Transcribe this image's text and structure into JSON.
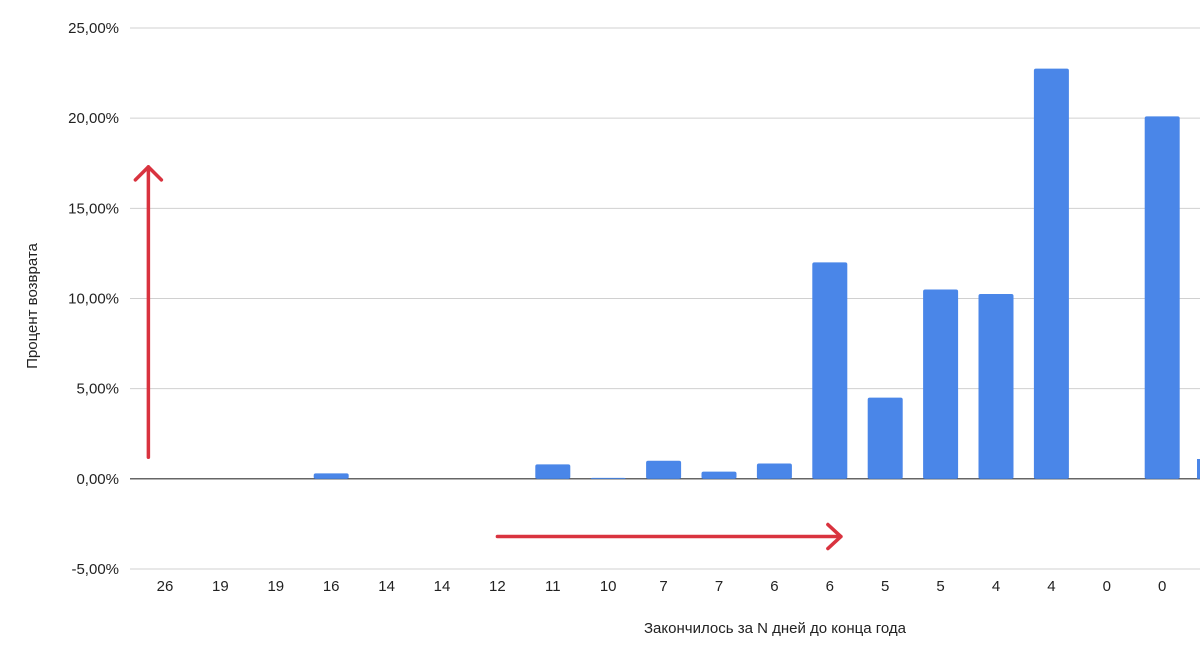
{
  "chart_data": {
    "type": "bar",
    "categories": [
      "26",
      "19",
      "19",
      "16",
      "14",
      "14",
      "12",
      "11",
      "10",
      "7",
      "7",
      "6",
      "6",
      "5",
      "5",
      "4",
      "4",
      "0",
      "0"
    ],
    "values": [
      0,
      0,
      0,
      0.3,
      0,
      0,
      0,
      0.8,
      0.05,
      1.0,
      0.4,
      0.85,
      12.0,
      4.5,
      10.5,
      10.25,
      22.75,
      0,
      20.1
    ],
    "y_ticks": [
      "-5,00%",
      "0,00%",
      "5,00%",
      "10,00%",
      "15,00%",
      "20,00%",
      "25,00%"
    ],
    "xlabel": "Закончилось за N дней до конца года",
    "ylabel": "Процент возврата",
    "ylim": [
      -5,
      25
    ],
    "grid": true,
    "legend": "none",
    "bar_color": "#4a86e8",
    "annotation_color": "#d9333f",
    "annotations": [
      {
        "type": "arrow",
        "direction": "up",
        "x_category_index": -0.3,
        "y_from": 1.2,
        "y_to": 17.3
      },
      {
        "type": "arrow",
        "direction": "right",
        "y": -3.2,
        "x_from_index": 6,
        "x_to_index": 12.2
      }
    ]
  }
}
